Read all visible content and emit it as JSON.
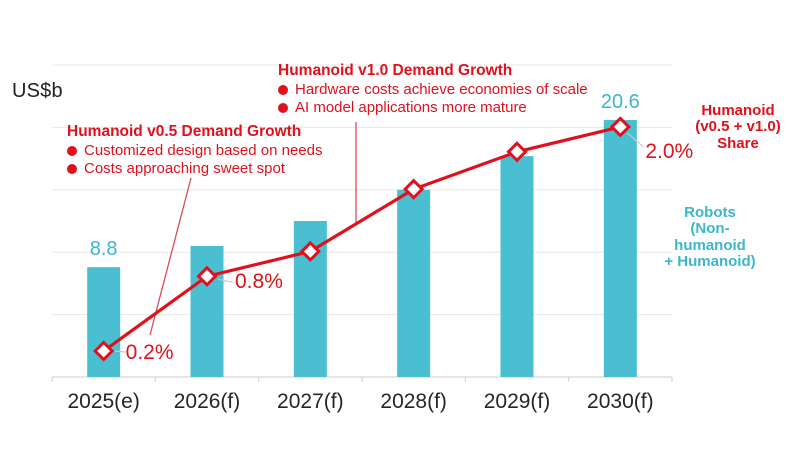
{
  "axis": {
    "unit_label": "US$b"
  },
  "chart_data": {
    "type": "combo-bar-line",
    "title": "",
    "ylabel": "US$b",
    "ylim": [
      0,
      25
    ],
    "grid": true,
    "grid_step": 5,
    "categories": [
      "2025(e)",
      "2026(f)",
      "2027(f)",
      "2028(f)",
      "2029(f)",
      "2030(f)"
    ],
    "bar_series": {
      "name": "Robots (Non-humanoid + Humanoid)",
      "unit": "US$b",
      "values": [
        8.8,
        10.5,
        12.5,
        15.0,
        17.7,
        20.6
      ],
      "shown_value_labels": {
        "0": "8.8",
        "5": "20.6"
      },
      "color": "#4BBFD2"
    },
    "line_series": {
      "name": "Humanoid (v0.5 + v1.0) Share",
      "unit": "%",
      "values": [
        0.2,
        0.8,
        1.0,
        1.5,
        1.8,
        2.0
      ],
      "shown_value_labels": {
        "0": "0.2%",
        "1": "0.8%",
        "5": "2.0%"
      },
      "color": "#E0111C"
    }
  },
  "annotations": {
    "v10": {
      "title": "Humanoid v1.0 Demand Growth",
      "bullets": [
        "Hardware costs achieve economies of scale",
        "AI model applications more mature"
      ]
    },
    "v05": {
      "title": "Humanoid v0.5 Demand Growth",
      "bullets": [
        "Customized design based on needs",
        "Costs approaching sweet spot"
      ]
    }
  },
  "legend": {
    "share_lines": [
      "Humanoid",
      "(v0.5 + v1.0)",
      "Share"
    ],
    "robots_lines": [
      "Robots",
      "(Non-humanoid",
      "+ Humanoid)"
    ]
  },
  "colors": {
    "bar": "#4BBFD2",
    "bar_text": "#3BB6CE",
    "line": "#E0111C",
    "red_text": "#E0111C",
    "axis_text": "#262626",
    "gridline": "#E8E8E8",
    "axis_line": "#D6D6D6",
    "connector": "#C9C9C9",
    "leader": "#DD4B55"
  }
}
